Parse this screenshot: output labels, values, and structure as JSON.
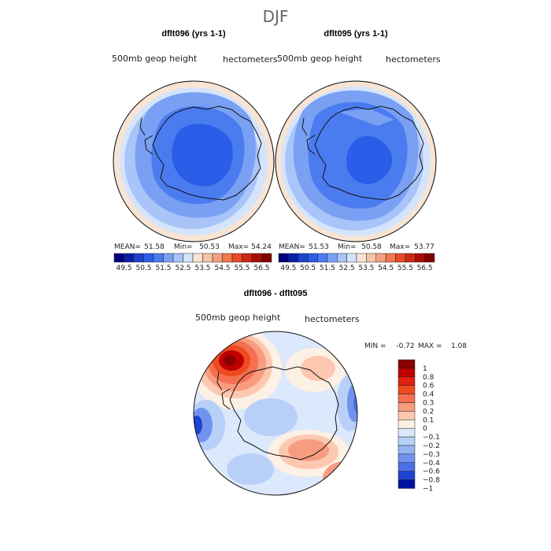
{
  "chart_data": [
    {
      "type": "heatmap",
      "projection": "south-polar-stereographic",
      "title": "dflt096 (yrs 1-1)",
      "variable": "500mb geop height",
      "units": "hectometers",
      "stats": {
        "mean_label": "MEAN=",
        "mean": "51.58",
        "min_label": "Min=",
        "min": "50.53",
        "max_label": "Max=",
        "max": "54.24"
      },
      "levels": [
        "49.5",
        "50.5",
        "51.5",
        "52.5",
        "53.5",
        "54.5",
        "55.5",
        "56.5"
      ]
    },
    {
      "type": "heatmap",
      "projection": "south-polar-stereographic",
      "title": "dflt095 (yrs 1-1)",
      "variable": "500mb geop height",
      "units": "hectometers",
      "stats": {
        "mean_label": "MEAN=",
        "mean": "51.53",
        "min_label": "Min=",
        "min": "50.58",
        "max_label": "Max=",
        "max": "53.77"
      },
      "levels": [
        "49.5",
        "50.5",
        "51.5",
        "52.5",
        "53.5",
        "54.5",
        "55.5",
        "56.5"
      ]
    },
    {
      "type": "heatmap",
      "projection": "south-polar-stereographic",
      "title": "dflt096 - dflt095",
      "variable": "500mb geop height",
      "units": "hectometers",
      "stats": {
        "min_label": "MIN =",
        "min": "-0.72",
        "max_label": "MAX =",
        "max": "1.08"
      },
      "legend_levels": [
        "1",
        "0.8",
        "0.6",
        "0.4",
        "0.3",
        "0.2",
        "0.1",
        "0",
        "−0.1",
        "−0.2",
        "−0.3",
        "−0.4",
        "−0.6",
        "−0.8",
        "−1"
      ]
    }
  ],
  "page": {
    "season_title": "DJF"
  },
  "colors": {
    "abs_scale": [
      "#000080",
      "#0a1fa8",
      "#1a44cc",
      "#2a5ee8",
      "#4a7cf0",
      "#7aa0f4",
      "#a8c4f8",
      "#d4e4fc",
      "#f8e4d4",
      "#f8c4a8",
      "#f4a080",
      "#f07850",
      "#e84a28",
      "#cc2810",
      "#a80c00",
      "#800000"
    ],
    "diff_scale": [
      "#8b0000",
      "#c00000",
      "#e02010",
      "#f04a20",
      "#f47050",
      "#f89c80",
      "#fcc8b0",
      "#fdf0e4",
      "#dce8fc",
      "#b8d0f8",
      "#94b4f4",
      "#7094ee",
      "#4a70e8",
      "#1e44d4",
      "#0010a0"
    ]
  }
}
